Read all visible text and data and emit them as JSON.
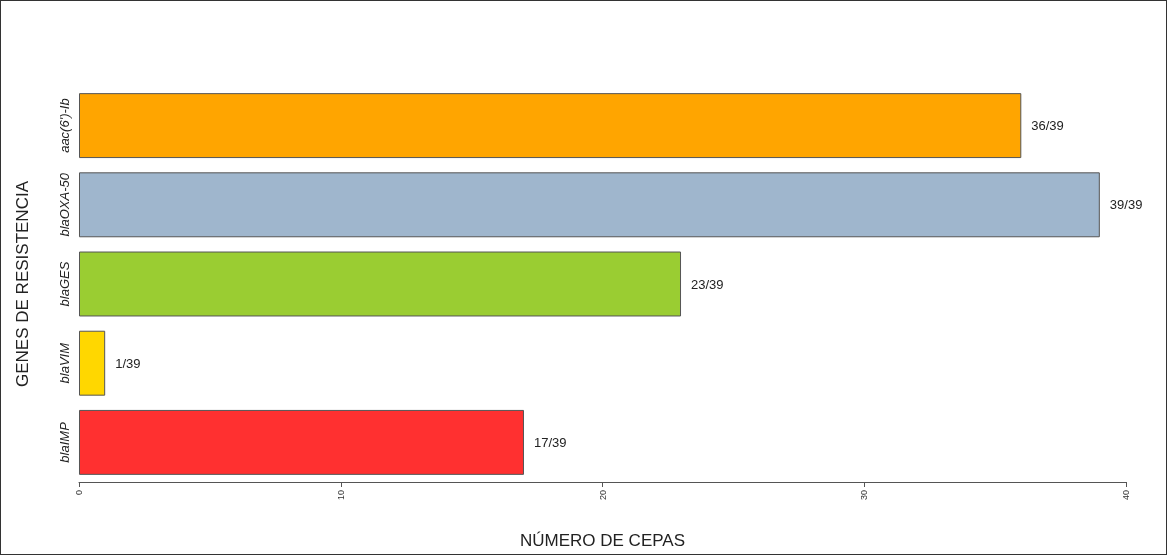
{
  "chart_data": {
    "type": "bar",
    "orientation": "horizontal",
    "xlabel": "NÚMERO DE CEPAS",
    "ylabel": "GENES DE RESISTENCIA",
    "categories": [
      "aac(6')-Ib",
      "blaOXA-50",
      "blaGES",
      "blaVIM",
      "blaIMP"
    ],
    "values": [
      36,
      39,
      23,
      1,
      17
    ],
    "colors": [
      "#ffa500",
      "#9fb6cd",
      "#9acd32",
      "#ffd700",
      "#ff3030"
    ],
    "value_labels": [
      "36/39",
      "39/39",
      "23/39",
      "1/39",
      "17/39"
    ],
    "xlim": [
      0,
      40
    ],
    "xticks": [
      0,
      10,
      20,
      30,
      40
    ],
    "grid": false
  }
}
